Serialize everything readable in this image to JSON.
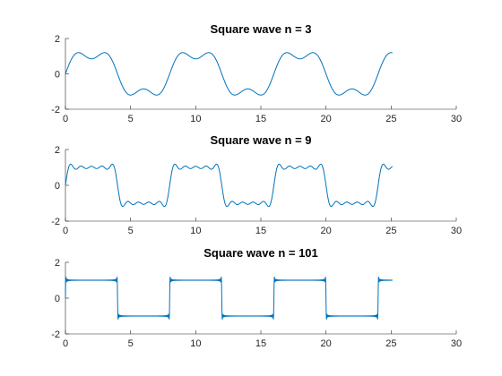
{
  "chart_data": [
    {
      "type": "line",
      "title": "Square wave n = 3",
      "function": "square wave Fourier partial sum",
      "harmonics": 3,
      "period": 8,
      "amplitude": 1,
      "x_range": [
        0,
        25.1
      ],
      "xlim": [
        0,
        30
      ],
      "ylim": [
        -2,
        2
      ],
      "xticks": [
        0,
        5,
        10,
        15,
        20,
        25,
        30
      ],
      "yticks": [
        -2,
        0,
        2
      ],
      "xtick_labels": [
        "0",
        "5",
        "10",
        "15",
        "20",
        "25",
        "30"
      ],
      "ytick_labels": [
        "-2",
        "0",
        "2"
      ],
      "color": "#0072BD",
      "grid": false
    },
    {
      "type": "line",
      "title": "Square wave n = 9",
      "function": "square wave Fourier partial sum",
      "harmonics": 9,
      "period": 8,
      "amplitude": 1,
      "x_range": [
        0,
        25.1
      ],
      "xlim": [
        0,
        30
      ],
      "ylim": [
        -2,
        2
      ],
      "xticks": [
        0,
        5,
        10,
        15,
        20,
        25,
        30
      ],
      "yticks": [
        -2,
        0,
        2
      ],
      "xtick_labels": [
        "0",
        "5",
        "10",
        "15",
        "20",
        "25",
        "30"
      ],
      "ytick_labels": [
        "-2",
        "0",
        "2"
      ],
      "color": "#0072BD",
      "grid": false
    },
    {
      "type": "line",
      "title": "Square wave n = 101",
      "function": "square wave Fourier partial sum",
      "harmonics": 101,
      "period": 8,
      "amplitude": 1,
      "x_range": [
        0,
        25.1
      ],
      "xlim": [
        0,
        30
      ],
      "ylim": [
        -2,
        2
      ],
      "xticks": [
        0,
        5,
        10,
        15,
        20,
        25,
        30
      ],
      "yticks": [
        -2,
        0,
        2
      ],
      "xtick_labels": [
        "0",
        "5",
        "10",
        "15",
        "20",
        "25",
        "30"
      ],
      "ytick_labels": [
        "-2",
        "0",
        "2"
      ],
      "color": "#0072BD",
      "grid": false
    }
  ]
}
